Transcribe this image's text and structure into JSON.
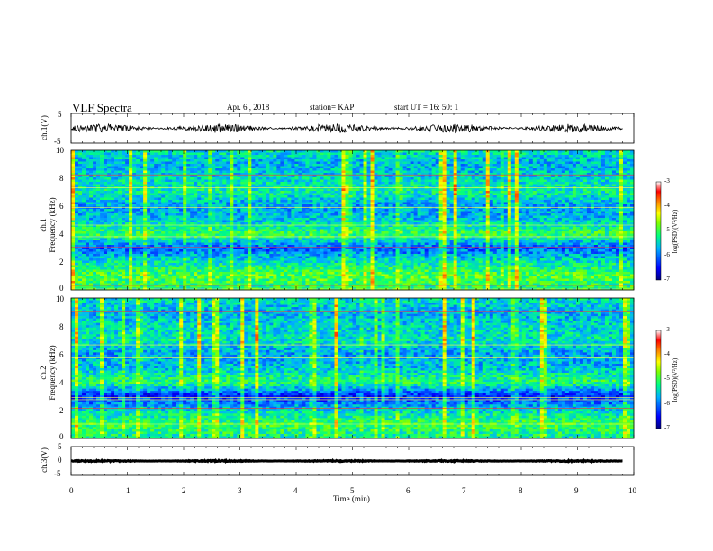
{
  "header": {
    "title": "VLF Spectra",
    "date": "Apr. 6 , 2018",
    "station": "station= KAP",
    "start": "start UT = 16: 50: 1"
  },
  "panels": {
    "ch1_waveform_label": "ch.1(V)",
    "ch1_spectrogram_label_a": "ch.1",
    "ch1_spectrogram_label_b": "Frequency (kHz)",
    "ch2_spectrogram_label_a": "ch.2",
    "ch2_spectrogram_label_b": "Frequency (kHz)",
    "ch3_waveform_label": "ch.3(V)",
    "colorbar_label": "log(PSD)(V²/Hz)"
  },
  "axes": {
    "wave_ticks": [
      "5",
      "0",
      "-5"
    ],
    "freq_ticks": [
      "10",
      "8",
      "6",
      "4",
      "2",
      "0"
    ],
    "x_ticks": [
      "0",
      "1",
      "2",
      "3",
      "4",
      "5",
      "6",
      "7",
      "8",
      "9",
      "10"
    ],
    "x_label": "Time (min)",
    "colorbar_ticks": [
      "-3",
      "-4",
      "-5",
      "-6",
      "-7"
    ]
  },
  "chart_data": [
    {
      "type": "line",
      "name": "ch.1 waveform",
      "x_range_min": [
        0,
        9.8
      ],
      "ylim": [
        -5,
        5
      ],
      "approx_mean": 0,
      "approx_amplitude": 1.5
    },
    {
      "type": "heatmap",
      "name": "ch.1 spectrogram",
      "xlim": [
        0,
        10
      ],
      "ylim_khz": [
        0,
        10
      ],
      "zlim_logpsd": [
        -7,
        -3
      ],
      "colormap": [
        "#000080",
        "#0000ff",
        "#00b0ff",
        "#00ff80",
        "#80ff00",
        "#ffff00",
        "#ff8000",
        "#ff0000",
        "#ffffff"
      ],
      "band_levels_khz": [
        [
          0,
          -5.2
        ],
        [
          1,
          -4.9
        ],
        [
          2,
          -5.4
        ],
        [
          3,
          -6.1
        ],
        [
          4,
          -5.0
        ],
        [
          5,
          -5.6
        ],
        [
          6,
          -5.8
        ],
        [
          7,
          -5.3
        ],
        [
          8,
          -5.5
        ],
        [
          9,
          -5.7
        ],
        [
          10,
          -5.4
        ]
      ]
    },
    {
      "type": "heatmap",
      "name": "ch.2 spectrogram",
      "xlim": [
        0,
        10
      ],
      "ylim_khz": [
        0,
        10
      ],
      "zlim_logpsd": [
        -7,
        -3
      ],
      "band_levels_khz": [
        [
          0,
          -5.3
        ],
        [
          1,
          -5.0
        ],
        [
          2,
          -5.5
        ],
        [
          3,
          -6.4
        ],
        [
          4,
          -5.1
        ],
        [
          5,
          -5.6
        ],
        [
          6,
          -5.8
        ],
        [
          7,
          -5.4
        ],
        [
          8,
          -5.5
        ],
        [
          9,
          -5.7
        ],
        [
          10,
          -5.4
        ]
      ]
    },
    {
      "type": "line",
      "name": "ch.3 waveform",
      "x_range_min": [
        0,
        9.8
      ],
      "ylim": [
        -5,
        5
      ],
      "approx_mean": 0,
      "approx_amplitude": 0.2
    }
  ]
}
